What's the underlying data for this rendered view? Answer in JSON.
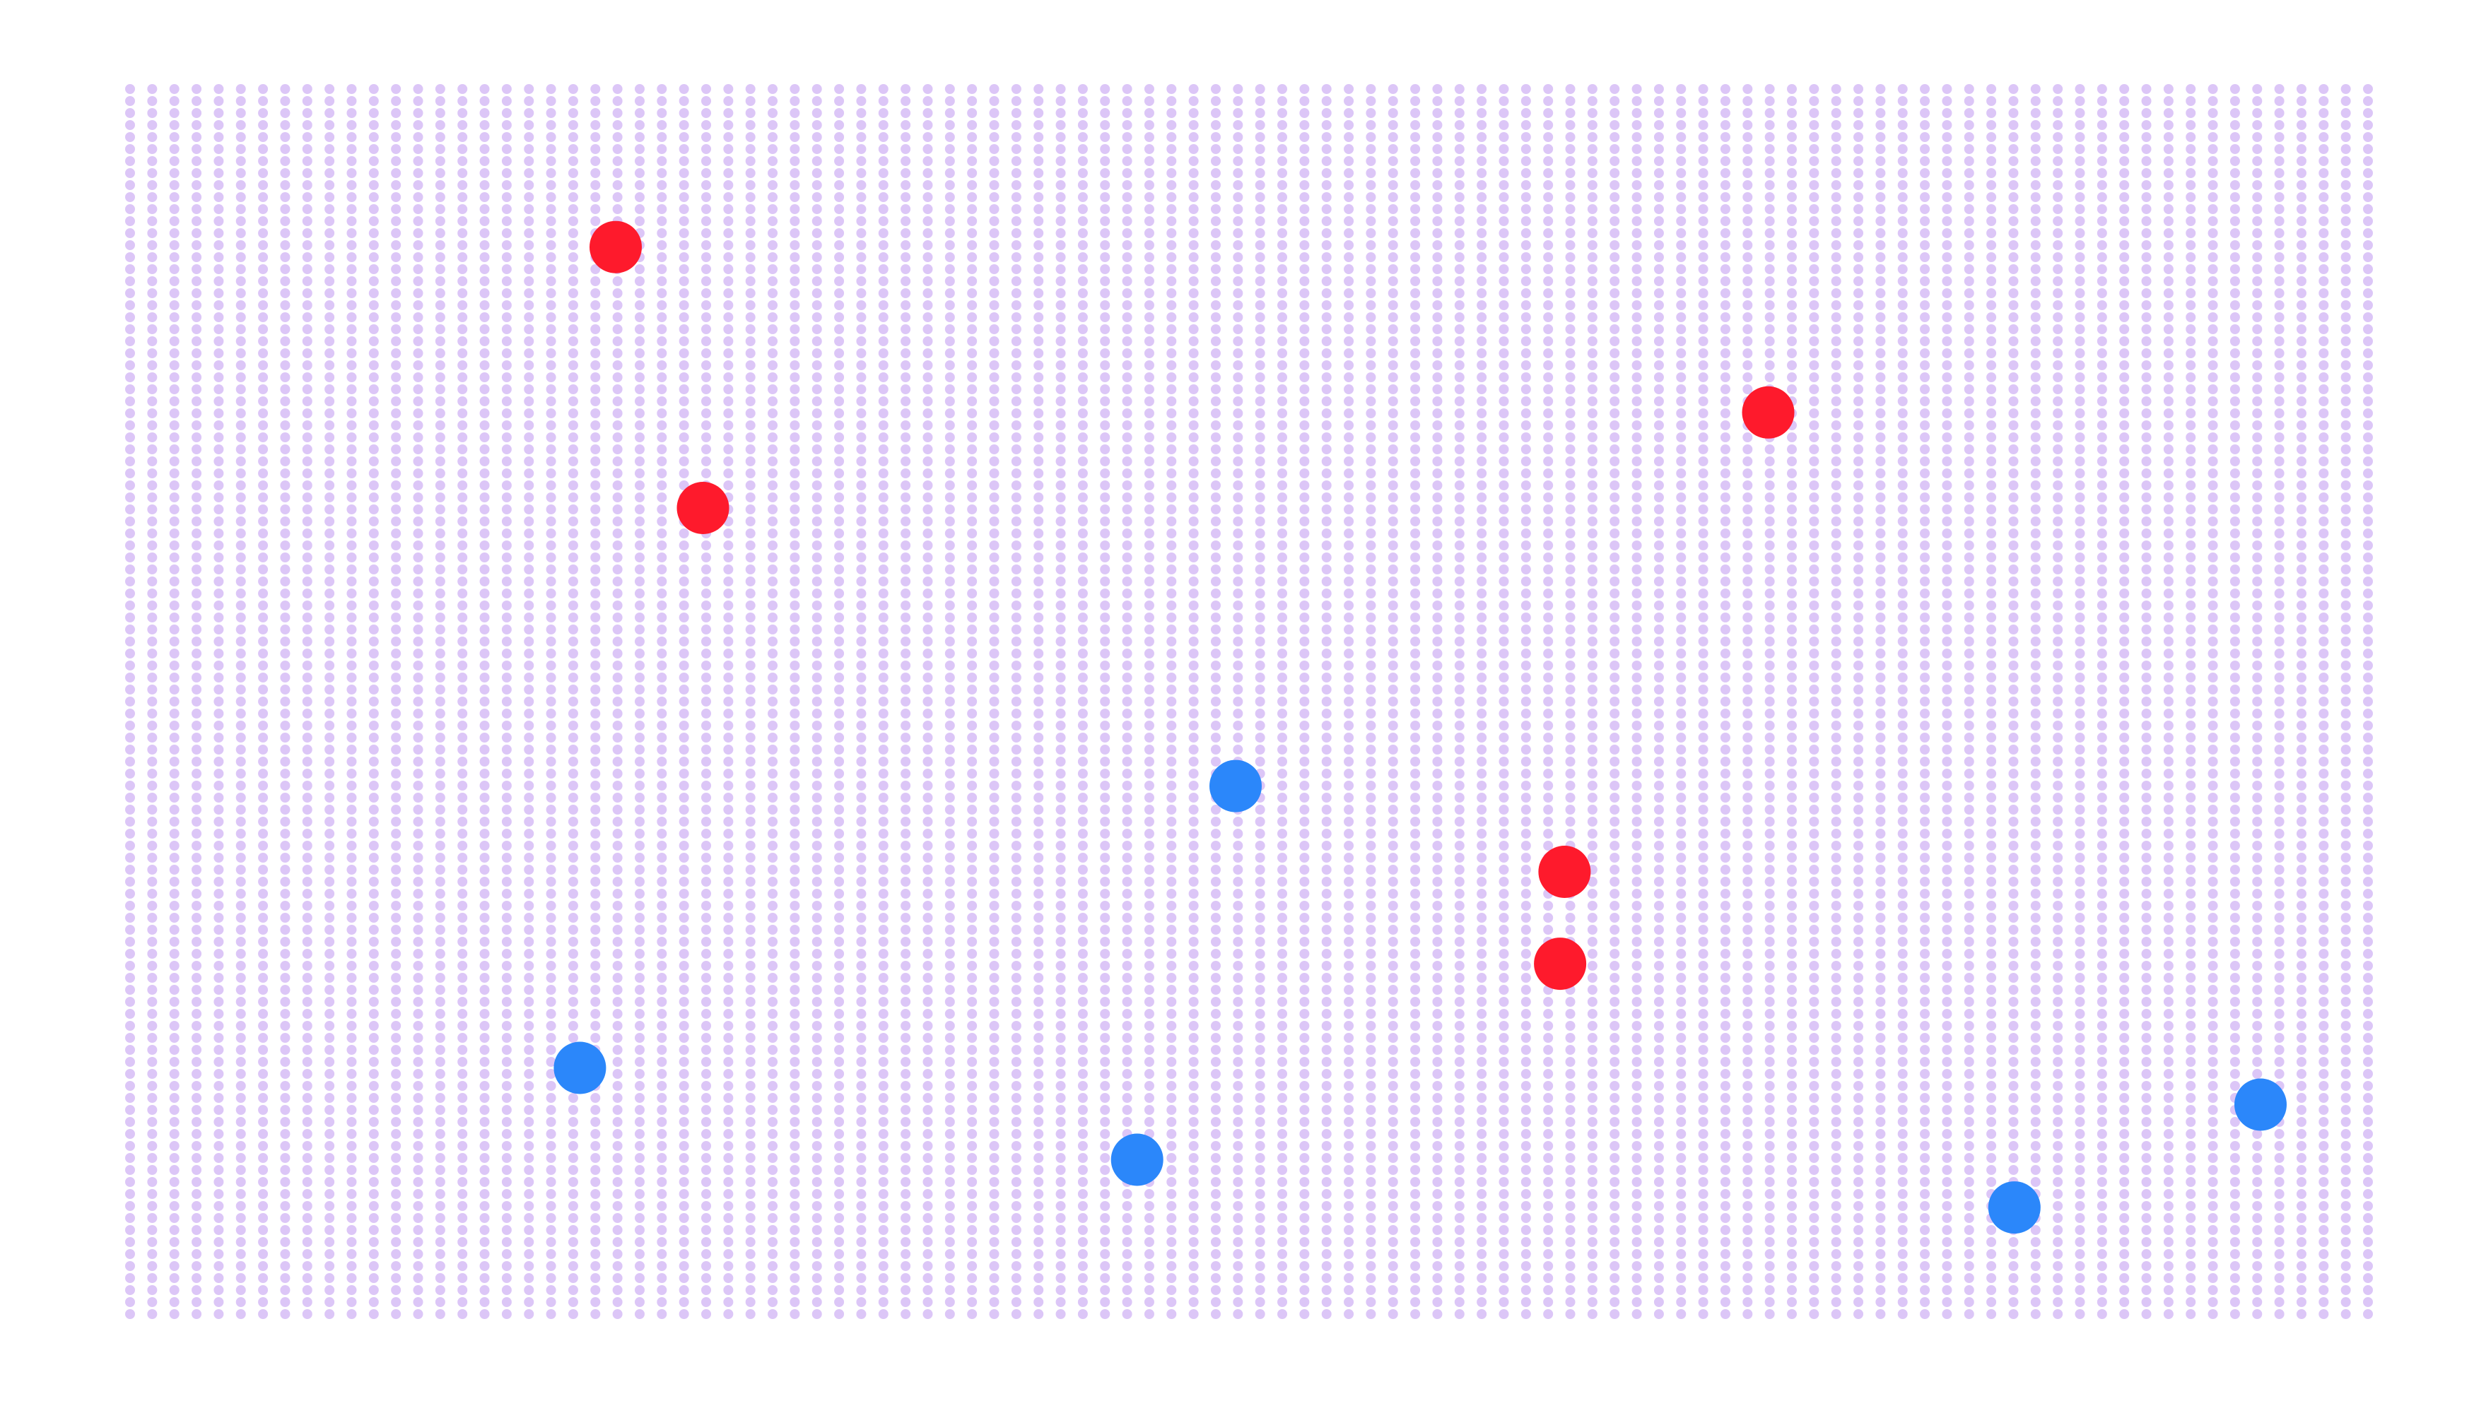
{
  "chart_data": {
    "type": "scatter",
    "title": "",
    "xlabel": "",
    "ylabel": "",
    "background": {
      "pattern": "dot-grid",
      "color": "#dcc6f7",
      "columns": 102,
      "rows": 103
    },
    "grid": false,
    "legend": "none",
    "xlim": [
      0,
      1
    ],
    "ylim": [
      0,
      1
    ],
    "series": [
      {
        "color": "#fe1a2c",
        "points": [
          {
            "x": 0.217,
            "y": 0.871
          },
          {
            "x": 0.256,
            "y": 0.658
          },
          {
            "x": 0.732,
            "y": 0.736
          },
          {
            "x": 0.641,
            "y": 0.361
          },
          {
            "x": 0.639,
            "y": 0.286
          }
        ]
      },
      {
        "color": "#2b87fa",
        "points": [
          {
            "x": 0.494,
            "y": 0.431
          },
          {
            "x": 0.201,
            "y": 0.201
          },
          {
            "x": 0.45,
            "y": 0.126
          },
          {
            "x": 0.842,
            "y": 0.087
          },
          {
            "x": 0.952,
            "y": 0.171
          }
        ]
      }
    ]
  }
}
